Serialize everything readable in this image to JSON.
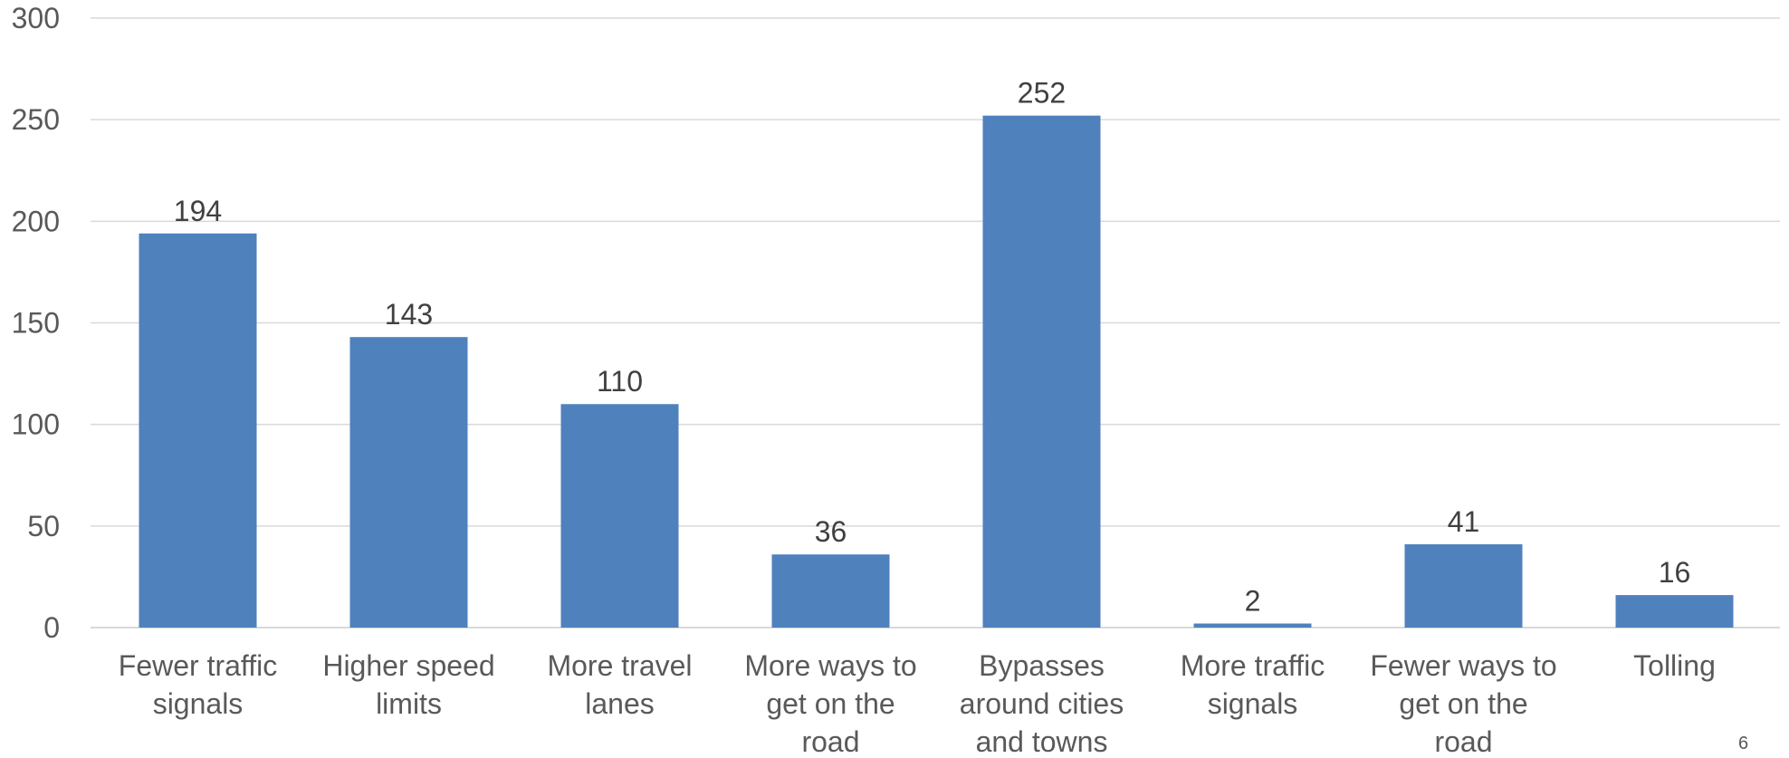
{
  "chart_data": {
    "type": "bar",
    "categories": [
      [
        "Fewer traffic",
        "signals"
      ],
      [
        "Higher speed",
        "limits"
      ],
      [
        "More travel",
        "lanes"
      ],
      [
        "More ways to",
        "get on the",
        "road"
      ],
      [
        "Bypasses",
        "around cities",
        "and towns"
      ],
      [
        "More traffic",
        "signals"
      ],
      [
        "Fewer ways to",
        "get on the",
        "road"
      ],
      [
        "Tolling"
      ]
    ],
    "values": [
      194,
      143,
      110,
      36,
      252,
      2,
      41,
      16
    ],
    "ylim": [
      0,
      300
    ],
    "yticks": [
      0,
      50,
      100,
      150,
      200,
      250,
      300
    ],
    "grid": true,
    "legend": "none",
    "data_labels": true,
    "colors": {
      "bar": "#4f81bd",
      "grid": "#d9d9d9",
      "text": "#404040"
    }
  },
  "page": {
    "number": "6"
  }
}
